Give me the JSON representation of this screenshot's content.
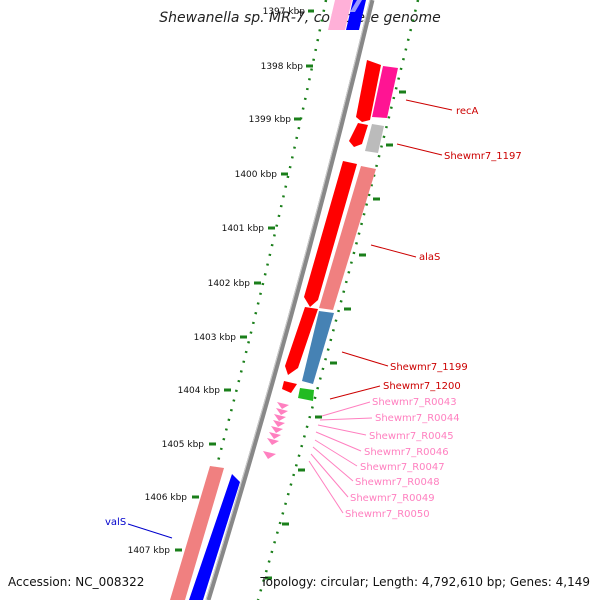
{
  "header": {
    "title": "Shewanella sp. MR-7, complete genome"
  },
  "footer": {
    "accession": "Accession: NC_008322",
    "topology": "Topology: circular; Length: 4,792,610 bp; Genes: 4,149"
  },
  "colors": {
    "backbone": "#888888",
    "tick": "#1a7f1a",
    "gene_red": "#ff0000",
    "gene_pink": "#ff1493",
    "gene_salmon": "#f08080",
    "gene_steel": "#4682b4",
    "gene_green": "#22bb22",
    "gene_blue": "#0000ff",
    "gene_gray": "#bbbbbb",
    "trna_pink": "#ff80c0"
  },
  "map": {
    "ticks": [
      "1397 kbp",
      "1398 kbp",
      "1399 kbp",
      "1400 kbp",
      "1401 kbp",
      "1402 kbp",
      "1403 kbp",
      "1404 kbp",
      "1405 kbp",
      "1406 kbp",
      "1407 kbp"
    ]
  },
  "labels": [
    {
      "id": "recA",
      "text": "recA",
      "color": "#cc0000"
    },
    {
      "id": "shewmr7-1197",
      "text": "Shewmr7_1197",
      "color": "#cc0000"
    },
    {
      "id": "alaS",
      "text": "alaS",
      "color": "#cc0000"
    },
    {
      "id": "shewmr7-1199",
      "text": "Shewmr7_1199",
      "color": "#cc0000"
    },
    {
      "id": "shewmr7-1200",
      "text": "Shewmr7_1200",
      "color": "#cc0000"
    },
    {
      "id": "shewmr7-r0043",
      "text": "Shewmr7_R0043",
      "color": "#ff80c0"
    },
    {
      "id": "shewmr7-r0044",
      "text": "Shewmr7_R0044",
      "color": "#ff80c0"
    },
    {
      "id": "shewmr7-r0045",
      "text": "Shewmr7_R0045",
      "color": "#ff80c0"
    },
    {
      "id": "shewmr7-r0046",
      "text": "Shewmr7_R0046",
      "color": "#ff80c0"
    },
    {
      "id": "shewmr7-r0047",
      "text": "Shewmr7_R0047",
      "color": "#ff80c0"
    },
    {
      "id": "shewmr7-r0048",
      "text": "Shewmr7_R0048",
      "color": "#ff80c0"
    },
    {
      "id": "shewmr7-r0049",
      "text": "Shewmr7_R0049",
      "color": "#ff80c0"
    },
    {
      "id": "shewmr7-r0050",
      "text": "Shewmr7_R0050",
      "color": "#ff80c0"
    },
    {
      "id": "valS",
      "text": "valS",
      "color": "#0000cc"
    }
  ]
}
